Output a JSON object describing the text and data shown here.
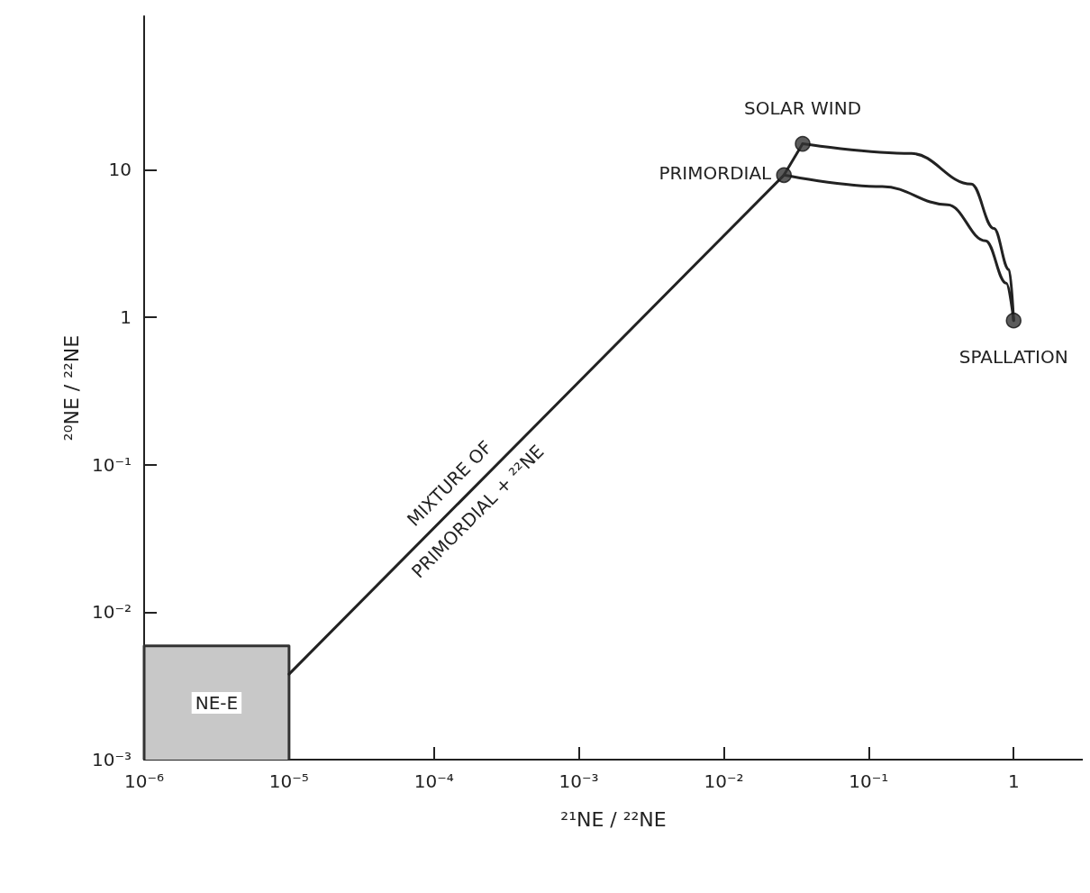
{
  "chart_data": {
    "type": "line",
    "xlabel": "²¹NE / ²²NE",
    "ylabel": "²⁰NE / ²²NE",
    "log": "xy",
    "grid": false,
    "legend": false,
    "xlim": [
      1e-06,
      3
    ],
    "ylim": [
      0.001,
      110
    ],
    "xticks": [
      {
        "value": 1e-06,
        "label": "10⁻⁶"
      },
      {
        "value": 1e-05,
        "label": "10⁻⁵"
      },
      {
        "value": 0.0001,
        "label": "10⁻⁴"
      },
      {
        "value": 0.001,
        "label": "10⁻³"
      },
      {
        "value": 0.01,
        "label": "10⁻²"
      },
      {
        "value": 0.1,
        "label": "10⁻¹"
      },
      1
    ],
    "yticks": [
      {
        "value": 0.001,
        "label": "10⁻³"
      },
      {
        "value": 0.01,
        "label": "10⁻²"
      },
      {
        "value": 0.1,
        "label": "10⁻¹"
      },
      1,
      10
    ],
    "series": [
      {
        "type": "area",
        "name": "NE-E",
        "color": "#c8c8c8",
        "x": [
          1e-06,
          1e-06,
          1e-05,
          1e-05
        ],
        "values": [
          0.001,
          0.0059,
          0.0059,
          0.001
        ]
      },
      {
        "color": "#222222",
        "marker": "none",
        "x": [
          1e-05,
          0.026
        ],
        "values": [
          0.0038,
          9.2
        ]
      },
      {
        "color": "#222222",
        "marker": "none",
        "x": [
          0.026,
          0.035
        ],
        "values": [
          9.2,
          15
        ]
      },
      {
        "color": "#222222",
        "marker": "none",
        "x": [
          0.035,
          0.197,
          0.51,
          0.73,
          0.93,
          1
        ],
        "values": [
          15,
          12.9,
          8.0,
          4.0,
          2.1,
          0.95
        ]
      },
      {
        "color": "#222222",
        "marker": "none",
        "x": [
          0.026,
          0.124,
          0.35,
          0.64,
          0.89,
          1
        ],
        "values": [
          9.2,
          7.7,
          5.8,
          3.3,
          1.7,
          0.95
        ]
      },
      {
        "type": "scatter",
        "color": "#333333",
        "marker": "circle",
        "x": [
          0.026,
          0.035,
          1
        ],
        "values": [
          9.2,
          15,
          0.95
        ]
      }
    ],
    "annotations": [
      {
        "text": "PRIMORDIAL",
        "x": 0.026,
        "y": 9.2
      },
      {
        "text": "SOLAR WIND",
        "x": 0.035,
        "y": 15
      },
      {
        "text": "SPALLATION",
        "x": 1,
        "y": 0.95
      },
      {
        "text": "MIXTURE OF\nPRIMORDIAL + ²²NE",
        "x": 0.00016,
        "y": 0.06
      }
    ]
  }
}
